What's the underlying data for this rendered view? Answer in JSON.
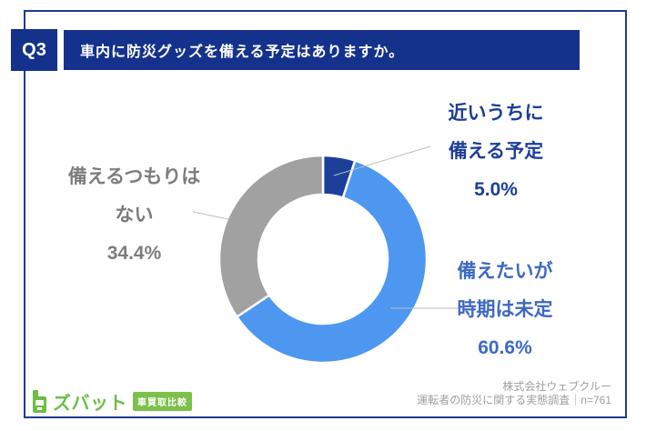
{
  "header": {
    "q_label": "Q3",
    "title": "車内に防災グッズを備える予定はありますか。"
  },
  "chart_data": {
    "type": "pie",
    "subtype": "donut",
    "title": "車内に防災グッズを備える予定はありますか。",
    "start_angle_deg": 0,
    "direction": "clockwise",
    "sample_note": "n=761",
    "segments": [
      {
        "label": "近いうちに備える予定",
        "value": 5.0,
        "display": "5.0%",
        "color": "#1C3F9A"
      },
      {
        "label": "備えたいが時期は未定",
        "value": 60.6,
        "display": "60.6%",
        "color": "#4D97F0"
      },
      {
        "label": "備えるつもりはない",
        "value": 34.4,
        "display": "34.4%",
        "color": "#A1A1A1"
      }
    ]
  },
  "labels": {
    "near_future": {
      "line1": "近いうちに",
      "line2": "備える予定",
      "value": "5.0%"
    },
    "no_plan": {
      "line1": "備えるつもりは",
      "line2": "ない",
      "value": "34.4%"
    },
    "undecided": {
      "line1": "備えたいが",
      "line2": "時期は未定",
      "value": "60.6%"
    }
  },
  "footer": {
    "logo_text": "ズバット",
    "logo_badge": "車買取比較",
    "company": "株式会社ウェブクルー",
    "survey": "運転者の防災に関する実態調査｜n=761"
  },
  "colors": {
    "header_navy": "#14328C",
    "border_navy": "#1B3C8C",
    "label_near": "#1B3E99",
    "label_undecided": "#3D68C5",
    "label_no_plan": "#7D7D7D",
    "footer_gray": "#9E9E9E",
    "logo_green": "#6CBE45",
    "badge_green": "#7CC14B",
    "leader_line": "#BDBDBD",
    "background": "#FFFFFF"
  }
}
